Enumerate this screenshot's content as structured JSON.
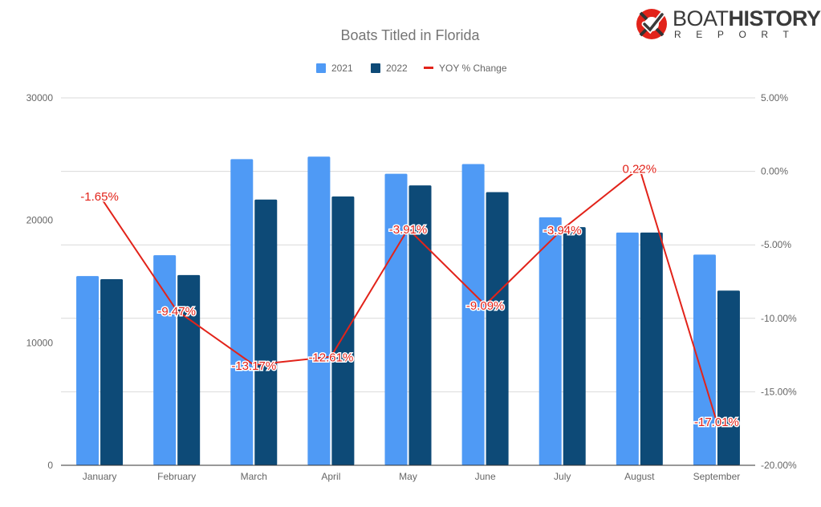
{
  "logo": {
    "word_light": "BOAT",
    "word_bold": "HISTORY",
    "sub": "REPORT"
  },
  "colors": {
    "s2021": "#4f9af5",
    "s2022": "#0d4a77",
    "yoy": "#e2231a",
    "grid": "#d9d9d9",
    "text": "#666666",
    "title": "#757575"
  },
  "chart_data": {
    "type": "bar",
    "title": "Boats Titled in Florida",
    "categories": [
      "January",
      "February",
      "March",
      "April",
      "May",
      "June",
      "July",
      "August",
      "September"
    ],
    "series": [
      {
        "name": "2021",
        "type": "bar",
        "values": [
          15450,
          17150,
          25000,
          25200,
          23800,
          24600,
          20250,
          19000,
          17200
        ]
      },
      {
        "name": "2022",
        "type": "bar",
        "values": [
          15200,
          15530,
          21700,
          21950,
          22850,
          22300,
          19450,
          19000,
          14260
        ]
      },
      {
        "name": "YOY % Change",
        "type": "line",
        "axis": "right",
        "values": [
          -1.65,
          -9.47,
          -13.17,
          -12.61,
          -3.91,
          -9.09,
          -3.94,
          0.22,
          -17.01
        ],
        "labels": [
          "-1.65%",
          "-9.47%",
          "-13.17%",
          "-12.61%",
          "-3.91%",
          "-9.09%",
          "-3.94%",
          "0.22%",
          "-17.01%"
        ]
      }
    ],
    "left_axis": {
      "ylim": [
        0,
        30000
      ],
      "ticks": [
        "0",
        "10000",
        "20000",
        "30000"
      ],
      "tick_values": [
        0,
        10000,
        20000,
        30000
      ]
    },
    "right_axis": {
      "ylim": [
        -20,
        5
      ],
      "ticks": [
        "5.00%",
        "0.00%",
        "-5.00%",
        "-10.00%",
        "-15.00%",
        "-20.00%"
      ],
      "tick_values": [
        5,
        0,
        -5,
        -10,
        -15,
        -20
      ]
    },
    "legend_position": "top-center",
    "grid": true
  }
}
